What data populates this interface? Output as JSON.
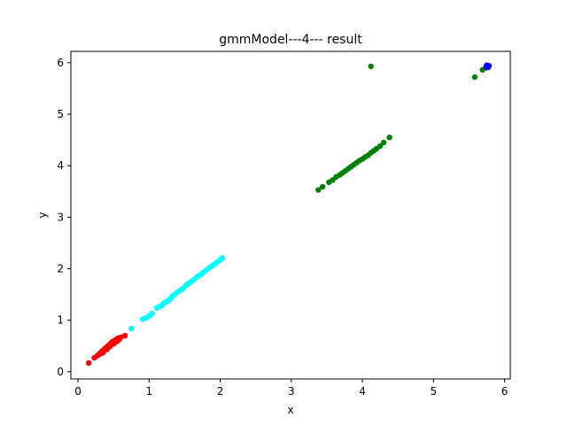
{
  "chart_data": {
    "type": "scatter",
    "title": "gmmModel---4--- result",
    "xlabel": "x",
    "ylabel": "y",
    "xlim": [
      -0.1,
      6.08
    ],
    "ylim": [
      -0.14,
      6.22
    ],
    "xticks": [
      0,
      1,
      2,
      3,
      4,
      5,
      6
    ],
    "yticks": [
      0,
      1,
      2,
      3,
      4,
      5,
      6
    ],
    "grid": false,
    "series": [
      {
        "color": "#ff0000",
        "points": [
          [
            0.15,
            0.17
          ],
          [
            0.23,
            0.27
          ],
          [
            0.27,
            0.31
          ],
          [
            0.29,
            0.33
          ],
          [
            0.31,
            0.36
          ],
          [
            0.32,
            0.35
          ],
          [
            0.33,
            0.38
          ],
          [
            0.34,
            0.4
          ],
          [
            0.35,
            0.37
          ],
          [
            0.36,
            0.42
          ],
          [
            0.37,
            0.41
          ],
          [
            0.38,
            0.45
          ],
          [
            0.39,
            0.43
          ],
          [
            0.4,
            0.47
          ],
          [
            0.41,
            0.44
          ],
          [
            0.42,
            0.5
          ],
          [
            0.43,
            0.48
          ],
          [
            0.44,
            0.52
          ],
          [
            0.45,
            0.49
          ],
          [
            0.46,
            0.55
          ],
          [
            0.47,
            0.53
          ],
          [
            0.48,
            0.58
          ],
          [
            0.49,
            0.56
          ],
          [
            0.5,
            0.54
          ],
          [
            0.51,
            0.6
          ],
          [
            0.52,
            0.57
          ],
          [
            0.53,
            0.62
          ],
          [
            0.55,
            0.59
          ],
          [
            0.56,
            0.65
          ],
          [
            0.58,
            0.63
          ],
          [
            0.6,
            0.67
          ],
          [
            0.66,
            0.7
          ]
        ]
      },
      {
        "color": "#00ffff",
        "points": [
          [
            0.75,
            0.84
          ],
          [
            0.91,
            1.02
          ],
          [
            0.96,
            1.05
          ],
          [
            1.0,
            1.08
          ],
          [
            1.04,
            1.13
          ],
          [
            1.11,
            1.24
          ],
          [
            1.14,
            1.26
          ],
          [
            1.18,
            1.29
          ],
          [
            1.21,
            1.33
          ],
          [
            1.24,
            1.36
          ],
          [
            1.27,
            1.38
          ],
          [
            1.3,
            1.42
          ],
          [
            1.33,
            1.47
          ],
          [
            1.36,
            1.5
          ],
          [
            1.4,
            1.55
          ],
          [
            1.44,
            1.58
          ],
          [
            1.48,
            1.62
          ],
          [
            1.52,
            1.68
          ],
          [
            1.56,
            1.72
          ],
          [
            1.6,
            1.76
          ],
          [
            1.64,
            1.8
          ],
          [
            1.68,
            1.85
          ],
          [
            1.72,
            1.88
          ],
          [
            1.76,
            1.93
          ],
          [
            1.8,
            1.97
          ],
          [
            1.84,
            2.01
          ],
          [
            1.88,
            2.05
          ],
          [
            1.92,
            2.09
          ],
          [
            1.96,
            2.13
          ],
          [
            2.0,
            2.17
          ],
          [
            2.03,
            2.21
          ]
        ]
      },
      {
        "color": "#008000",
        "points": [
          [
            3.38,
            3.53
          ],
          [
            3.44,
            3.59
          ],
          [
            3.53,
            3.68
          ],
          [
            3.58,
            3.72
          ],
          [
            3.63,
            3.78
          ],
          [
            3.68,
            3.82
          ],
          [
            3.72,
            3.86
          ],
          [
            3.76,
            3.9
          ],
          [
            3.8,
            3.94
          ],
          [
            3.84,
            3.98
          ],
          [
            3.88,
            4.02
          ],
          [
            3.92,
            4.06
          ],
          [
            3.96,
            4.1
          ],
          [
            4.0,
            4.13
          ],
          [
            4.04,
            4.17
          ],
          [
            4.08,
            4.2
          ],
          [
            4.12,
            4.25
          ],
          [
            4.16,
            4.29
          ],
          [
            4.2,
            4.33
          ],
          [
            4.25,
            4.38
          ],
          [
            4.3,
            4.45
          ],
          [
            4.38,
            4.55
          ],
          [
            4.12,
            5.93
          ],
          [
            5.58,
            5.72
          ],
          [
            5.69,
            5.86
          ],
          [
            5.74,
            5.9
          ]
        ]
      },
      {
        "color": "#0000ff",
        "points": [
          [
            5.74,
            5.92
          ],
          [
            5.76,
            5.93
          ],
          [
            5.78,
            5.94
          ],
          [
            5.77,
            5.91
          ],
          [
            5.75,
            5.95
          ]
        ]
      }
    ]
  }
}
